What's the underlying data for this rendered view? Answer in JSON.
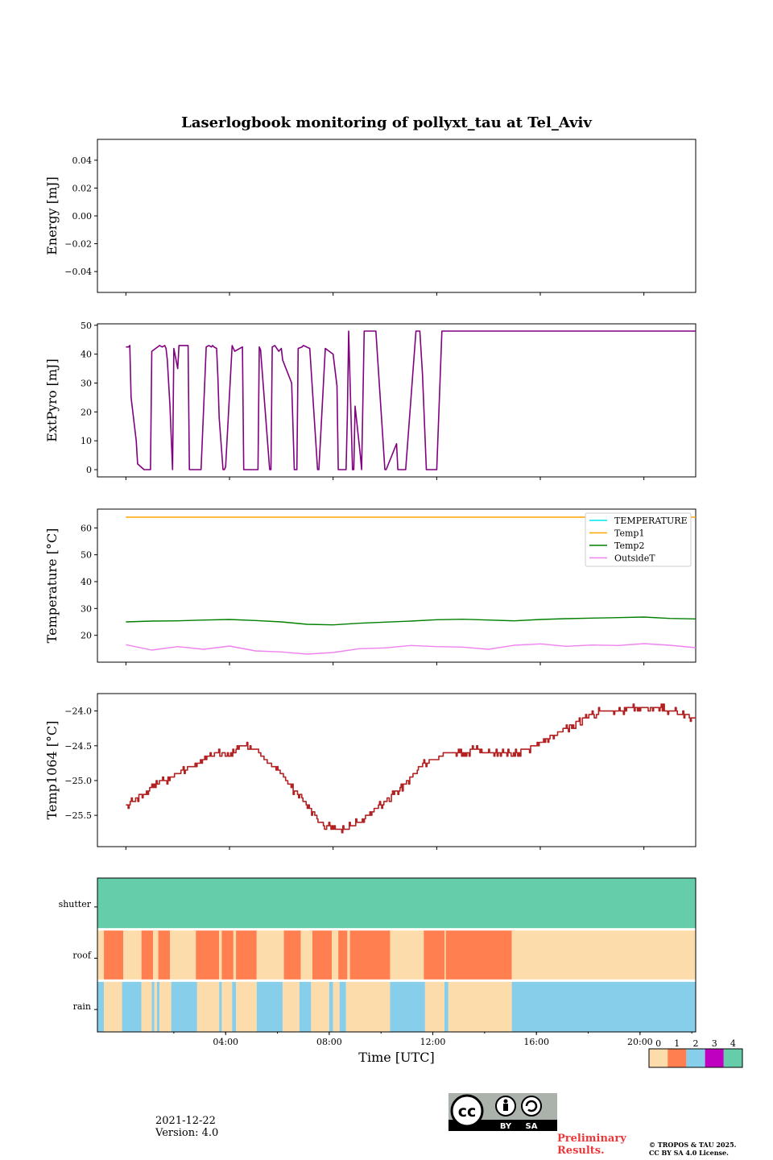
{
  "chart_data": [
    {
      "type": "line",
      "title": "Laserlogbook monitoring of pollyxt_tau at Tel_Aviv",
      "ylabel": "Energy [mJ]",
      "ylim": [
        -0.055,
        0.055
      ],
      "yticks": [
        "0.04",
        "0.02",
        "0.00",
        "−0.02",
        "−0.04"
      ],
      "series": []
    },
    {
      "type": "line",
      "ylabel": "ExtPyro [mJ]",
      "ylim": [
        -2.5,
        50.5
      ],
      "yticks": [
        "50",
        "40",
        "30",
        "20",
        "10",
        "0"
      ],
      "color": "#800080",
      "x_hours": [
        0.0,
        0.1,
        0.15,
        0.2,
        0.4,
        0.45,
        0.7,
        0.95,
        1.0,
        1.3,
        1.4,
        1.5,
        1.55,
        1.6,
        1.7,
        1.8,
        1.85,
        2.0,
        2.05,
        2.4,
        2.45,
        2.9,
        3.1,
        3.2,
        3.3,
        3.35,
        3.4,
        3.5,
        3.55,
        3.6,
        3.75,
        3.8,
        3.85,
        4.1,
        4.2,
        4.5,
        4.55,
        5.1,
        5.15,
        5.2,
        5.55,
        5.6,
        5.65,
        5.75,
        5.9,
        6.0,
        6.05,
        6.4,
        6.5,
        6.6,
        6.65,
        6.8,
        6.85,
        7.1,
        7.4,
        7.45,
        7.7,
        8.0,
        8.15,
        8.2,
        8.5,
        8.55,
        8.6,
        8.75,
        8.8,
        8.85,
        9.05,
        9.1,
        9.2,
        9.25,
        9.3,
        9.6,
        9.65,
        10.0,
        10.05,
        10.45,
        10.5,
        10.8,
        11.2,
        11.35,
        11.45,
        11.6,
        11.95,
        12.0,
        12.2,
        12.5,
        12.55,
        12.75,
        12.8,
        13.5,
        13.9,
        14.3,
        14.35,
        15.0,
        16.0,
        18.0,
        20.0,
        22.0
      ],
      "y": [
        42.5,
        42.5,
        43.0,
        25.0,
        10.0,
        2.0,
        0.0,
        0.0,
        41.0,
        43.0,
        42.5,
        43.0,
        42.0,
        38.0,
        22.0,
        0.0,
        42.0,
        35.0,
        43.0,
        43.0,
        0.0,
        0.0,
        42.5,
        43.0,
        42.5,
        43.0,
        42.5,
        42.0,
        32.0,
        18.0,
        0.0,
        0.0,
        1.0,
        43.0,
        41.0,
        42.5,
        0.0,
        0.0,
        42.5,
        41.5,
        0.0,
        0.0,
        42.5,
        43.0,
        41.0,
        42.0,
        38.0,
        30.0,
        0.0,
        0.0,
        42.0,
        42.5,
        43.0,
        42.0,
        0.0,
        0.0,
        42.0,
        40.0,
        29.0,
        0.0,
        0.0,
        19.0,
        48.0,
        0.0,
        0.0,
        22.0,
        5.0,
        0.0,
        48.0,
        48.0,
        48.0,
        48.0,
        48.0,
        0.0,
        0.0,
        9.0,
        0.0,
        0.0,
        48.0,
        48.0,
        33.0,
        0.0,
        0.0,
        0.0,
        48.0,
        48.0,
        48.0,
        48.0,
        48.0,
        48.0,
        48.0,
        48.0,
        48.0,
        48.0,
        48.0,
        48.0,
        48.0,
        48.0
      ]
    },
    {
      "type": "line",
      "ylabel": "Temperature [°C]",
      "ylim": [
        10,
        67
      ],
      "yticks": [
        "60",
        "50",
        "40",
        "30",
        "20"
      ],
      "legend_position": "upper right",
      "series": [
        {
          "name": "TEMPERATURE",
          "color": "#00e5ee",
          "x_hours": [],
          "values": []
        },
        {
          "name": "Temp1",
          "color": "#ffa500",
          "x_hours": [
            0,
            22
          ],
          "values": [
            64,
            64
          ]
        },
        {
          "name": "Temp2",
          "color": "#008000",
          "x_hours": [
            0,
            1,
            2,
            3,
            4,
            5,
            6,
            7,
            8,
            9,
            10,
            11,
            12,
            13,
            14,
            15,
            16,
            17,
            18,
            19,
            20,
            21,
            22
          ],
          "values": [
            25.0,
            25.3,
            25.4,
            25.7,
            25.9,
            25.5,
            25.0,
            24.1,
            23.9,
            24.5,
            24.9,
            25.3,
            25.8,
            26.0,
            25.7,
            25.4,
            25.9,
            26.2,
            26.4,
            26.6,
            26.8,
            26.3,
            26.1
          ]
        },
        {
          "name": "OutsideT",
          "color": "#ee82ee",
          "x_hours": [
            0,
            1,
            2,
            3,
            4,
            5,
            6,
            7,
            8,
            9,
            10,
            11,
            12,
            13,
            14,
            15,
            16,
            17,
            18,
            19,
            20,
            21,
            22
          ],
          "values": [
            16.5,
            14.5,
            15.8,
            14.8,
            16.0,
            14.2,
            13.8,
            13.0,
            13.6,
            15.0,
            15.3,
            16.2,
            15.8,
            15.6,
            14.8,
            16.3,
            16.8,
            15.9,
            16.4,
            16.2,
            16.9,
            16.3,
            15.4
          ]
        }
      ]
    },
    {
      "type": "line",
      "ylabel": "Temp1064 [°C]",
      "ylim": [
        -25.95,
        -23.75
      ],
      "yticks": [
        "−24.0",
        "−24.5",
        "−25.0",
        "−25.5"
      ],
      "color": "#b22222",
      "x_hours": [
        0.0,
        0.5,
        1.0,
        1.5,
        2.0,
        2.5,
        3.0,
        3.5,
        4.0,
        4.5,
        5.0,
        5.5,
        6.0,
        6.5,
        7.0,
        7.5,
        8.0,
        8.5,
        9.0,
        9.5,
        10.0,
        10.5,
        11.0,
        11.5,
        12.0,
        12.5,
        13.0,
        13.5,
        14.0,
        14.5,
        15.0,
        15.5,
        16.0,
        16.5,
        17.0,
        17.5,
        18.0,
        18.5,
        19.0,
        19.5,
        20.0,
        20.5,
        21.0,
        21.5,
        22.0
      ],
      "values": [
        -25.35,
        -25.25,
        -25.1,
        -25.0,
        -24.9,
        -24.8,
        -24.7,
        -24.6,
        -24.6,
        -24.5,
        -24.55,
        -24.75,
        -24.9,
        -25.15,
        -25.35,
        -25.6,
        -25.7,
        -25.7,
        -25.6,
        -25.45,
        -25.3,
        -25.15,
        -24.95,
        -24.75,
        -24.65,
        -24.6,
        -24.6,
        -24.55,
        -24.6,
        -24.6,
        -24.6,
        -24.55,
        -24.45,
        -24.35,
        -24.25,
        -24.15,
        -24.05,
        -24.0,
        -24.0,
        -23.95,
        -23.95,
        -23.95,
        -24.0,
        -24.05,
        -24.1
      ]
    },
    {
      "type": "heatmap",
      "rows": [
        "shutter",
        "roof",
        "rain"
      ],
      "xlabel": "Time [UTC]",
      "xticks": [
        "04:00",
        "08:00",
        "12:00",
        "16:00",
        "20:00"
      ],
      "colorbar_ticks": [
        "0",
        "1",
        "2",
        "3",
        "4"
      ],
      "colors": [
        "#fcdcaa",
        "#ff7f50",
        "#87ceeb",
        "#c000c0",
        "#66cdaa"
      ],
      "segments": {
        "shutter": [
          [
            -1.1,
            22.0,
            4
          ]
        ],
        "roof": [
          [
            -1.1,
            -0.85,
            0
          ],
          [
            -0.85,
            -0.1,
            1
          ],
          [
            -0.1,
            0.6,
            0
          ],
          [
            0.6,
            1.05,
            1
          ],
          [
            1.05,
            1.25,
            0
          ],
          [
            1.25,
            1.7,
            1
          ],
          [
            1.7,
            2.7,
            0
          ],
          [
            2.7,
            3.6,
            1
          ],
          [
            3.6,
            3.7,
            0
          ],
          [
            3.7,
            4.15,
            1
          ],
          [
            4.15,
            4.25,
            0
          ],
          [
            4.25,
            5.05,
            1
          ],
          [
            5.05,
            6.1,
            0
          ],
          [
            6.1,
            6.75,
            1
          ],
          [
            6.75,
            7.2,
            0
          ],
          [
            7.2,
            7.95,
            1
          ],
          [
            7.95,
            8.2,
            0
          ],
          [
            8.2,
            8.55,
            1
          ],
          [
            8.55,
            8.65,
            0
          ],
          [
            8.65,
            10.2,
            1
          ],
          [
            10.2,
            11.5,
            0
          ],
          [
            11.5,
            12.3,
            1
          ],
          [
            12.3,
            12.35,
            0
          ],
          [
            12.35,
            14.9,
            1
          ],
          [
            14.9,
            22.0,
            0
          ]
        ],
        "rain": [
          [
            -1.1,
            -0.85,
            2
          ],
          [
            -0.85,
            -0.15,
            0
          ],
          [
            -0.15,
            0.6,
            2
          ],
          [
            0.6,
            1.0,
            0
          ],
          [
            1.0,
            1.1,
            2
          ],
          [
            1.1,
            1.2,
            0
          ],
          [
            1.2,
            1.3,
            2
          ],
          [
            1.3,
            1.75,
            0
          ],
          [
            1.75,
            2.75,
            2
          ],
          [
            2.75,
            3.6,
            0
          ],
          [
            3.6,
            3.7,
            2
          ],
          [
            3.7,
            4.1,
            0
          ],
          [
            4.1,
            4.25,
            2
          ],
          [
            4.25,
            5.05,
            0
          ],
          [
            5.05,
            6.05,
            2
          ],
          [
            6.05,
            6.7,
            0
          ],
          [
            6.7,
            7.15,
            2
          ],
          [
            7.15,
            7.85,
            0
          ],
          [
            7.85,
            8.0,
            2
          ],
          [
            8.0,
            8.25,
            0
          ],
          [
            8.25,
            8.5,
            2
          ],
          [
            8.5,
            10.2,
            0
          ],
          [
            10.2,
            11.55,
            2
          ],
          [
            11.55,
            12.3,
            0
          ],
          [
            12.3,
            12.45,
            2
          ],
          [
            12.45,
            14.9,
            0
          ],
          [
            14.9,
            22.0,
            2
          ]
        ]
      }
    }
  ],
  "footer": {
    "date": "2021-12-22",
    "version": "Version: 4.0",
    "preliminary_line1": "Preliminary",
    "preliminary_line2": "Results.",
    "copyright_line1": "© TROPOS & TAU 2025.",
    "copyright_line2": "CC BY SA 4.0 License."
  },
  "license_badge": {
    "cc": "cc",
    "by": "BY",
    "sa": "SA"
  }
}
